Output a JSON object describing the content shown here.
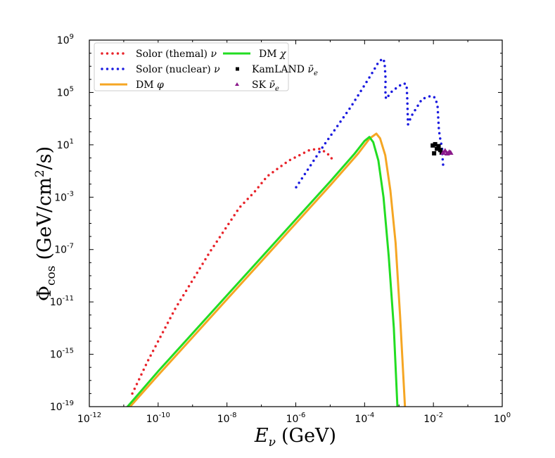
{
  "chart_data": {
    "type": "line",
    "title": "",
    "xlabel": "E_ν (GeV)",
    "xlabel_main": "E",
    "xlabel_sub": "ν",
    "xlabel_unit": "(GeV)",
    "ylabel_main": "Φ",
    "ylabel_sub": "cos",
    "ylabel_unit": "(GeV/cm",
    "ylabel_sup": "2",
    "ylabel_tail": "/s)",
    "x_scale": "log",
    "y_scale": "log",
    "xlim": [
      1e-12,
      1
    ],
    "ylim": [
      1e-19,
      1000000000.0
    ],
    "x_tick_exponents": [
      "-12",
      "-10",
      "-8",
      "-6",
      "-4",
      "-2",
      "0"
    ],
    "y_tick_exponents": [
      "9",
      "5",
      "1",
      "-3",
      "-7",
      "-11",
      "-15",
      "-19"
    ],
    "tick_base": "10",
    "grid": false,
    "legend_position": "top-left",
    "series": [
      {
        "name": "Solor (themal) ν",
        "label_text": "Solor (themal) ",
        "label_sym": "ν",
        "style": "dotted",
        "color": "#e8232a",
        "log10_points": [
          [
            -10.75,
            -18
          ],
          [
            -10.3,
            -15.5
          ],
          [
            -9.5,
            -11.5
          ],
          [
            -8.5,
            -7.2
          ],
          [
            -7.64,
            -3.8
          ],
          [
            -7.2,
            -2.6
          ],
          [
            -6.83,
            -1.4
          ],
          [
            -6.2,
            -0.2
          ],
          [
            -5.6,
            0.6
          ],
          [
            -5.33,
            0.7
          ],
          [
            -5.1,
            0.4
          ],
          [
            -4.94,
            -0.1
          ]
        ]
      },
      {
        "name": "Solor (nuclear) ν",
        "label_text": "Solor (nuclear) ",
        "label_sym": "ν",
        "style": "dotted",
        "color": "#1a1adf",
        "log10_points": [
          [
            -5.99,
            -2.24
          ],
          [
            -5.2,
            0.9
          ],
          [
            -4.4,
            3.9
          ],
          [
            -3.8,
            6.4
          ],
          [
            -3.6,
            7.3
          ],
          [
            -3.47,
            7.6
          ],
          [
            -3.42,
            7.3
          ],
          [
            -3.39,
            6.0
          ],
          [
            -3.4,
            5.2
          ],
          [
            -3.38,
            4.5
          ],
          [
            -3.2,
            5.1
          ],
          [
            -3.0,
            5.5
          ],
          [
            -2.86,
            5.7
          ],
          [
            -2.78,
            5.6
          ],
          [
            -2.76,
            4.5
          ],
          [
            -2.74,
            2.55
          ],
          [
            -2.64,
            3.2
          ],
          [
            -2.33,
            4.5
          ],
          [
            -2.06,
            4.75
          ],
          [
            -1.95,
            4.6
          ],
          [
            -1.88,
            4.0
          ],
          [
            -1.84,
            2.1
          ],
          [
            -1.8,
            1.4
          ],
          [
            -1.75,
            0.8
          ],
          [
            -1.73,
            -0.2
          ],
          [
            -1.71,
            -0.8
          ]
        ]
      },
      {
        "name": "DM φ",
        "label_text": "DM ",
        "label_sym": "φ",
        "style": "solid",
        "color": "#f5a623",
        "log10_points": [
          [
            -10.95,
            -19.4
          ],
          [
            -10,
            -16.6
          ],
          [
            -9,
            -13.7
          ],
          [
            -8,
            -10.8
          ],
          [
            -7,
            -7.9
          ],
          [
            -6,
            -5.0
          ],
          [
            -5,
            -2.1
          ],
          [
            -4.2,
            0.3
          ],
          [
            -3.85,
            1.5
          ],
          [
            -3.66,
            1.85
          ],
          [
            -3.55,
            1.5
          ],
          [
            -3.4,
            0.2
          ],
          [
            -3.25,
            -2.5
          ],
          [
            -3.1,
            -6.5
          ],
          [
            -2.97,
            -12
          ],
          [
            -2.82,
            -19.4
          ]
        ]
      },
      {
        "name": "DM χ",
        "label_text": "DM ",
        "label_sym": "χ",
        "style": "solid",
        "color": "#22dd22",
        "log10_points": [
          [
            -11.02,
            -19.4
          ],
          [
            -10,
            -16.3
          ],
          [
            -9,
            -13.4
          ],
          [
            -8,
            -10.5
          ],
          [
            -7,
            -7.6
          ],
          [
            -6,
            -4.7
          ],
          [
            -5,
            -1.8
          ],
          [
            -4.3,
            0.3
          ],
          [
            -4.0,
            1.3
          ],
          [
            -3.86,
            1.6
          ],
          [
            -3.75,
            1.2
          ],
          [
            -3.6,
            -0.2
          ],
          [
            -3.45,
            -3
          ],
          [
            -3.3,
            -7.5
          ],
          [
            -3.15,
            -13
          ],
          [
            -3.04,
            -19.4
          ]
        ]
      },
      {
        "name": "KamLAND ν̄e",
        "label_text": "KamLAND ",
        "label_sym": "ν̄",
        "label_subsym": "e",
        "style": "square",
        "color": "#000000",
        "log10_points": [
          [
            -2.02,
            0.95
          ],
          [
            -1.95,
            1.05
          ],
          [
            -1.9,
            0.7
          ],
          [
            -1.98,
            0.35
          ],
          [
            -1.85,
            0.9
          ],
          [
            -1.8,
            0.6
          ],
          [
            -1.76,
            0.4
          ]
        ]
      },
      {
        "name": "SK ν̄e",
        "label_text": "SK ",
        "label_sym": "ν̄",
        "label_subsym": "e",
        "style": "triangle",
        "color": "#8b1a8b",
        "log10_points": [
          [
            -1.72,
            0.4
          ],
          [
            -1.66,
            0.55
          ],
          [
            -1.6,
            0.35
          ],
          [
            -1.54,
            0.45
          ],
          [
            -1.5,
            0.4
          ]
        ]
      }
    ]
  }
}
